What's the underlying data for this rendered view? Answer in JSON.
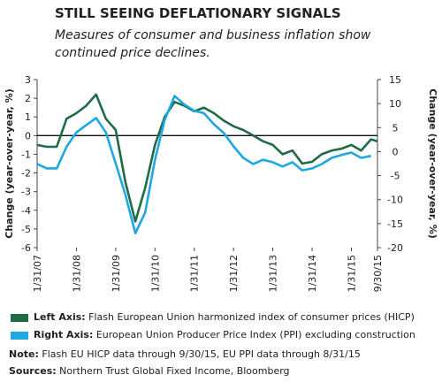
{
  "chart_data": {
    "type": "line",
    "title": "STILL SEEING DEFLATIONARY SIGNALS",
    "subtitle": "Measures of consumer and business inflation show continued price declines.",
    "ylabel": "Change (year-over-year, %)",
    "y2label": "Change (year-over-year, %)",
    "x": [
      "1/31/07",
      "4/30/07",
      "7/31/07",
      "10/31/07",
      "1/31/08",
      "4/30/08",
      "7/31/08",
      "10/31/08",
      "1/31/09",
      "4/30/09",
      "7/31/09",
      "10/31/09",
      "1/31/10",
      "4/30/10",
      "7/31/10",
      "10/31/10",
      "1/31/11",
      "4/30/11",
      "7/31/11",
      "10/31/11",
      "1/31/12",
      "4/30/12",
      "7/31/12",
      "10/31/12",
      "1/31/13",
      "4/30/13",
      "7/31/13",
      "10/31/13",
      "1/31/14",
      "4/30/14",
      "7/31/14",
      "10/31/14",
      "1/31/15",
      "4/30/15",
      "7/31/15",
      "9/30/15"
    ],
    "xticks": [
      "1/31/07",
      "1/31/08",
      "1/31/09",
      "1/31/10",
      "1/31/11",
      "1/31/12",
      "1/31/13",
      "1/31/14",
      "1/31/15",
      "9/30/15"
    ],
    "ylim": [
      -6,
      3
    ],
    "yticks": [
      -6,
      -5,
      -4,
      -3,
      -2,
      -1,
      0,
      1,
      2,
      3
    ],
    "y2lim": [
      -20,
      15
    ],
    "y2ticks": [
      -20,
      -15,
      -10,
      -5,
      0,
      5,
      10,
      15
    ],
    "series": [
      {
        "legend_prefix": "Left Axis:",
        "name": "Flash European Union harmonized index of consumer prices (HICP)",
        "color": "#1e6b45",
        "axis": "y",
        "values": [
          -0.5,
          -0.6,
          -0.6,
          0.9,
          1.2,
          1.6,
          2.2,
          0.9,
          0.3,
          -2.5,
          -4.6,
          -2.8,
          -0.5,
          1.0,
          1.8,
          1.6,
          1.3,
          1.5,
          1.2,
          0.8,
          0.5,
          0.3,
          0.0,
          -0.3,
          -0.5,
          -1.0,
          -0.8,
          -1.5,
          -1.4,
          -1.0,
          -0.8,
          -0.7,
          -0.5,
          -0.8,
          -0.2,
          -0.3
        ]
      },
      {
        "legend_prefix": "Right Axis:",
        "name": "European Union Producer Price Index (PPI) excluding construction",
        "color": "#1ea7e1",
        "axis": "y2",
        "values": [
          -2.6,
          -3.5,
          -3.5,
          1.0,
          4.0,
          5.5,
          7.0,
          4.0,
          -2.5,
          -9.0,
          -17.0,
          -12.7,
          -1.7,
          6.6,
          11.6,
          9.8,
          8.5,
          8.0,
          5.7,
          3.9,
          1.1,
          -1.3,
          -2.6,
          -1.7,
          -2.2,
          -3.1,
          -2.2,
          -3.9,
          -3.5,
          -2.6,
          -1.3,
          -0.7,
          -0.2,
          -1.3,
          -0.9,
          null
        ]
      }
    ],
    "notes": [
      {
        "label": "Note:",
        "text": "Flash EU HICP data through 9/30/15, EU PPI data through 8/31/15"
      },
      {
        "label": "Sources:",
        "text": "Northern Trust Global Fixed Income, Bloomberg"
      }
    ]
  }
}
